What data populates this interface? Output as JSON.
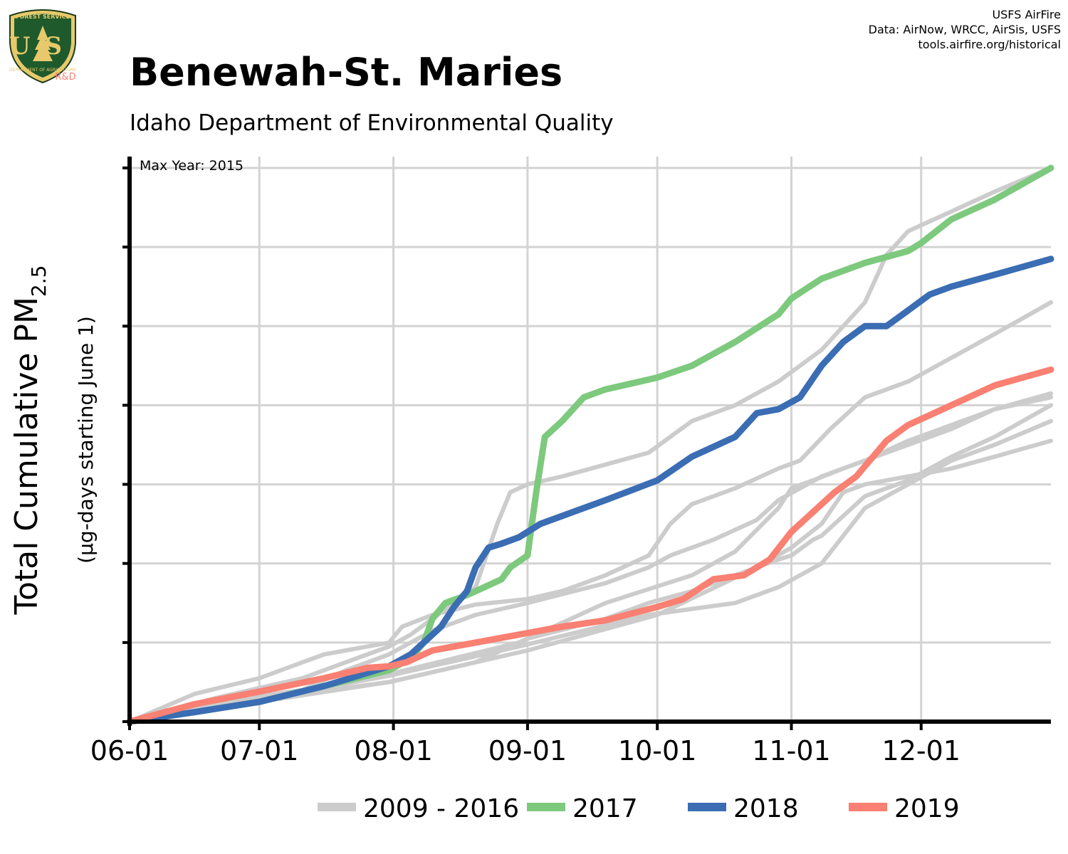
{
  "header": {
    "title": "Benewah-St. Maries",
    "subtitle": "Idaho Department of Environmental Quality",
    "credits": [
      "USFS AirFire",
      "Data: AirNow, WRCC, AirSis, USFS",
      "tools.airfire.org/historical"
    ],
    "logo": {
      "icon": "usfs-shield-icon",
      "top_text": "FOREST SERVICE",
      "letters": "US",
      "bottom_text": "DEPARTMENT OF AGRICULTURE",
      "badge": "R&D"
    }
  },
  "chart_data": {
    "type": "line",
    "title": "Benewah-St. Maries",
    "subtitle": "Idaho Department of Environmental Quality",
    "annotation": "Max Year: 2015",
    "ylabel": "Total Cumulative PM",
    "ylabel_subscript": "2.5",
    "ylabel_secondary": "(µg-days starting June 1)",
    "xlabel": "",
    "x_ticks": [
      "06-01",
      "07-01",
      "08-01",
      "09-01",
      "10-01",
      "11-01",
      "12-01"
    ],
    "x_tick_days": [
      0,
      30,
      61,
      92,
      122,
      153,
      183
    ],
    "xlim": [
      0,
      213
    ],
    "ylim": [
      0,
      7
    ],
    "y_ticks": [
      0,
      1,
      2,
      3,
      4,
      5,
      6,
      7
    ],
    "y_tick_labels_shown": false,
    "grid": true,
    "legend_position": "bottom",
    "colors": {
      "background_years": "#cccccc",
      "2017": "#7dc97d",
      "2018": "#3a6db3",
      "2019": "#f98072"
    },
    "legend": [
      {
        "label": "2009 - 2016",
        "color": "#cccccc"
      },
      {
        "label": "2017",
        "color": "#7dc97d"
      },
      {
        "label": "2018",
        "color": "#3a6db3"
      },
      {
        "label": "2019",
        "color": "#f98072"
      }
    ],
    "series": [
      {
        "group": "2009 - 2016",
        "color": "#cccccc",
        "x": [
          0,
          15,
          30,
          40,
          45,
          55,
          60,
          63,
          70,
          80,
          92,
          100,
          110,
          120,
          125,
          130,
          140,
          150,
          155,
          162,
          170,
          180,
          190,
          200,
          213
        ],
        "y": [
          0,
          0.35,
          0.55,
          0.75,
          0.85,
          0.95,
          1.0,
          1.2,
          1.35,
          1.48,
          1.55,
          1.65,
          1.85,
          2.1,
          2.5,
          2.75,
          2.95,
          3.2,
          3.3,
          3.7,
          4.1,
          4.3,
          4.6,
          4.9,
          5.3
        ]
      },
      {
        "group": "2009 - 2016",
        "color": "#cccccc",
        "x": [
          0,
          20,
          40,
          50,
          55,
          60,
          65,
          80,
          85,
          88,
          92,
          100,
          110,
          120,
          130,
          140,
          150,
          160,
          170,
          175,
          180,
          190,
          200,
          213
        ],
        "y": [
          0,
          0.3,
          0.55,
          0.75,
          0.85,
          0.95,
          1.1,
          1.7,
          2.5,
          2.9,
          3.0,
          3.1,
          3.25,
          3.4,
          3.8,
          4.0,
          4.3,
          4.7,
          5.3,
          5.9,
          6.2,
          6.45,
          6.7,
          7.0
        ]
      },
      {
        "group": "2009 - 2016",
        "color": "#cccccc",
        "x": [
          0,
          20,
          40,
          50,
          60,
          70,
          80,
          92,
          110,
          120,
          125,
          135,
          145,
          150,
          160,
          170,
          180,
          190,
          200,
          213
        ],
        "y": [
          0,
          0.25,
          0.4,
          0.65,
          0.85,
          1.15,
          1.35,
          1.5,
          1.75,
          1.95,
          2.1,
          2.3,
          2.55,
          2.8,
          3.1,
          3.3,
          3.5,
          3.7,
          3.95,
          4.1
        ]
      },
      {
        "group": "2009 - 2016",
        "color": "#cccccc",
        "x": [
          0,
          30,
          60,
          90,
          110,
          130,
          140,
          150,
          153,
          158,
          165,
          170,
          180,
          190,
          200,
          213
        ],
        "y": [
          0,
          0.3,
          0.6,
          1.0,
          1.5,
          1.85,
          2.15,
          2.7,
          2.95,
          3.05,
          3.2,
          3.3,
          3.55,
          3.75,
          3.95,
          4.15
        ]
      },
      {
        "group": "2009 - 2016",
        "color": "#cccccc",
        "x": [
          0,
          30,
          60,
          80,
          92,
          110,
          120,
          130,
          140,
          150,
          153,
          158,
          160,
          170,
          180,
          190,
          200,
          213
        ],
        "y": [
          0,
          0.25,
          0.5,
          0.75,
          1.05,
          1.3,
          1.5,
          1.65,
          1.85,
          2.05,
          2.1,
          2.3,
          2.35,
          2.85,
          3.05,
          3.35,
          3.6,
          4.0
        ]
      },
      {
        "group": "2009 - 2016",
        "color": "#cccccc",
        "x": [
          0,
          30,
          60,
          90,
          120,
          140,
          150,
          160,
          170,
          180,
          190,
          200,
          213
        ],
        "y": [
          0,
          0.28,
          0.58,
          0.95,
          1.35,
          1.5,
          1.7,
          2.0,
          2.7,
          3.0,
          3.3,
          3.5,
          3.8
        ]
      },
      {
        "group": "2009 - 2016",
        "color": "#cccccc",
        "x": [
          0,
          30,
          60,
          92,
          122,
          145,
          153,
          160,
          165,
          170,
          180,
          190,
          200,
          213
        ],
        "y": [
          0,
          0.28,
          0.5,
          0.9,
          1.35,
          1.95,
          2.2,
          2.5,
          2.9,
          3.0,
          3.1,
          3.2,
          3.35,
          3.55
        ]
      },
      {
        "name": "2017",
        "color": "#7dc97d",
        "x": [
          0,
          15,
          30,
          45,
          60,
          65,
          68,
          70,
          73,
          78,
          82,
          86,
          88,
          92,
          94,
          96,
          100,
          105,
          110,
          122,
          130,
          140,
          150,
          153,
          160,
          170,
          180,
          183,
          190,
          200,
          213
        ],
        "y": [
          0,
          0.12,
          0.25,
          0.45,
          0.65,
          0.8,
          1.0,
          1.3,
          1.5,
          1.6,
          1.7,
          1.8,
          1.95,
          2.1,
          2.9,
          3.6,
          3.8,
          4.1,
          4.2,
          4.35,
          4.5,
          4.8,
          5.15,
          5.35,
          5.6,
          5.8,
          5.95,
          6.05,
          6.35,
          6.6,
          7.0
        ]
      },
      {
        "name": "2018",
        "color": "#3a6db3",
        "x": [
          0,
          15,
          30,
          45,
          60,
          65,
          68,
          72,
          75,
          78,
          80,
          83,
          86,
          90,
          95,
          100,
          110,
          122,
          130,
          140,
          145,
          150,
          155,
          160,
          165,
          170,
          175,
          180,
          185,
          190,
          200,
          213
        ],
        "y": [
          0,
          0.12,
          0.25,
          0.45,
          0.7,
          0.85,
          1.0,
          1.2,
          1.45,
          1.65,
          1.95,
          2.2,
          2.25,
          2.33,
          2.5,
          2.6,
          2.8,
          3.05,
          3.35,
          3.6,
          3.9,
          3.95,
          4.1,
          4.5,
          4.8,
          5.0,
          5.0,
          5.2,
          5.4,
          5.5,
          5.65,
          5.85
        ]
      },
      {
        "name": "2019",
        "color": "#f98072",
        "x": [
          0,
          15,
          30,
          45,
          55,
          60,
          64,
          70,
          80,
          92,
          100,
          110,
          122,
          128,
          135,
          142,
          148,
          153,
          158,
          163,
          168,
          175,
          180,
          186,
          190,
          200,
          213
        ],
        "y": [
          0,
          0.22,
          0.38,
          0.55,
          0.68,
          0.7,
          0.75,
          0.9,
          1.0,
          1.12,
          1.2,
          1.28,
          1.45,
          1.55,
          1.8,
          1.85,
          2.05,
          2.4,
          2.65,
          2.9,
          3.1,
          3.55,
          3.75,
          3.9,
          4.0,
          4.25,
          4.45
        ]
      }
    ]
  }
}
